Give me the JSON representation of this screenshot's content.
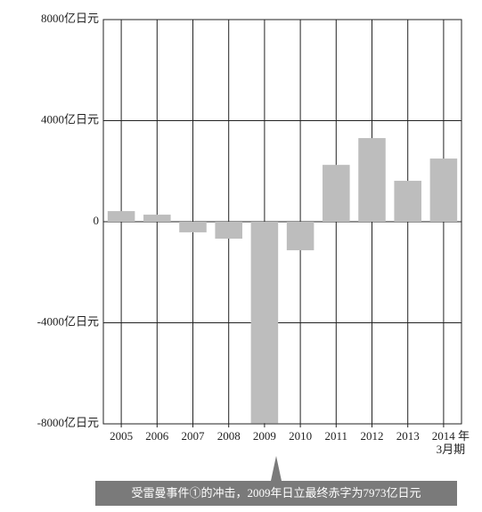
{
  "chart_data": {
    "type": "bar",
    "categories": [
      "2005",
      "2006",
      "2007",
      "2008",
      "2009",
      "2010",
      "2011",
      "2012",
      "2013",
      "2014 年\n3月期"
    ],
    "values": [
      420,
      280,
      -420,
      -670,
      -7973,
      -1130,
      2250,
      3310,
      1620,
      2500
    ],
    "color": "#bdbdbd",
    "ylim": [
      -8000,
      8000
    ],
    "yticks": [
      {
        "value": -8000,
        "label": "-8000亿日元"
      },
      {
        "value": -4000,
        "label": "-4000亿日元"
      },
      0,
      {
        "value": 4000,
        "label": "4000亿日元"
      },
      {
        "value": 8000,
        "label": "8000亿日元"
      }
    ],
    "grid": true,
    "annotation": "受雷曼事件①的冲击，2009年日立最终赤字为7973亿日元"
  }
}
